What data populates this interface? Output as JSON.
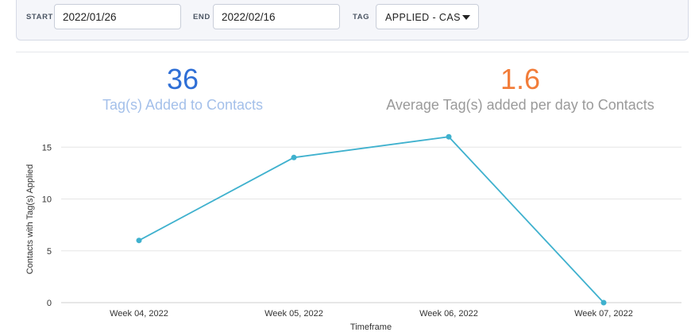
{
  "filters": {
    "start_label": "START",
    "start_value": "2022/01/26",
    "end_label": "END",
    "end_value": "2022/02/16",
    "tag_label": "TAG",
    "tag_value": "APPLIED - CAS"
  },
  "stats": [
    {
      "value": "36",
      "label": "Tag(s) Added to Contacts",
      "color": "#2f6fd6"
    },
    {
      "value": "1.6",
      "label": "Average Tag(s) added per day to Contacts",
      "color": "#f27d3a"
    }
  ],
  "colors": {
    "line": "#3fb1ce",
    "grid": "#e6e6e6"
  },
  "chart_data": {
    "type": "line",
    "categories": [
      "Week 04, 2022",
      "Week 05, 2022",
      "Week 06, 2022",
      "Week 07, 2022"
    ],
    "series": [
      {
        "values": [
          6,
          14,
          16,
          0
        ]
      }
    ],
    "xlabel": "Timeframe",
    "ylabel": "Contacts with Tag(s) Applied",
    "yticks": [
      0,
      5,
      10,
      15
    ],
    "ylim": [
      0,
      16
    ],
    "grid": true,
    "legend": false
  }
}
